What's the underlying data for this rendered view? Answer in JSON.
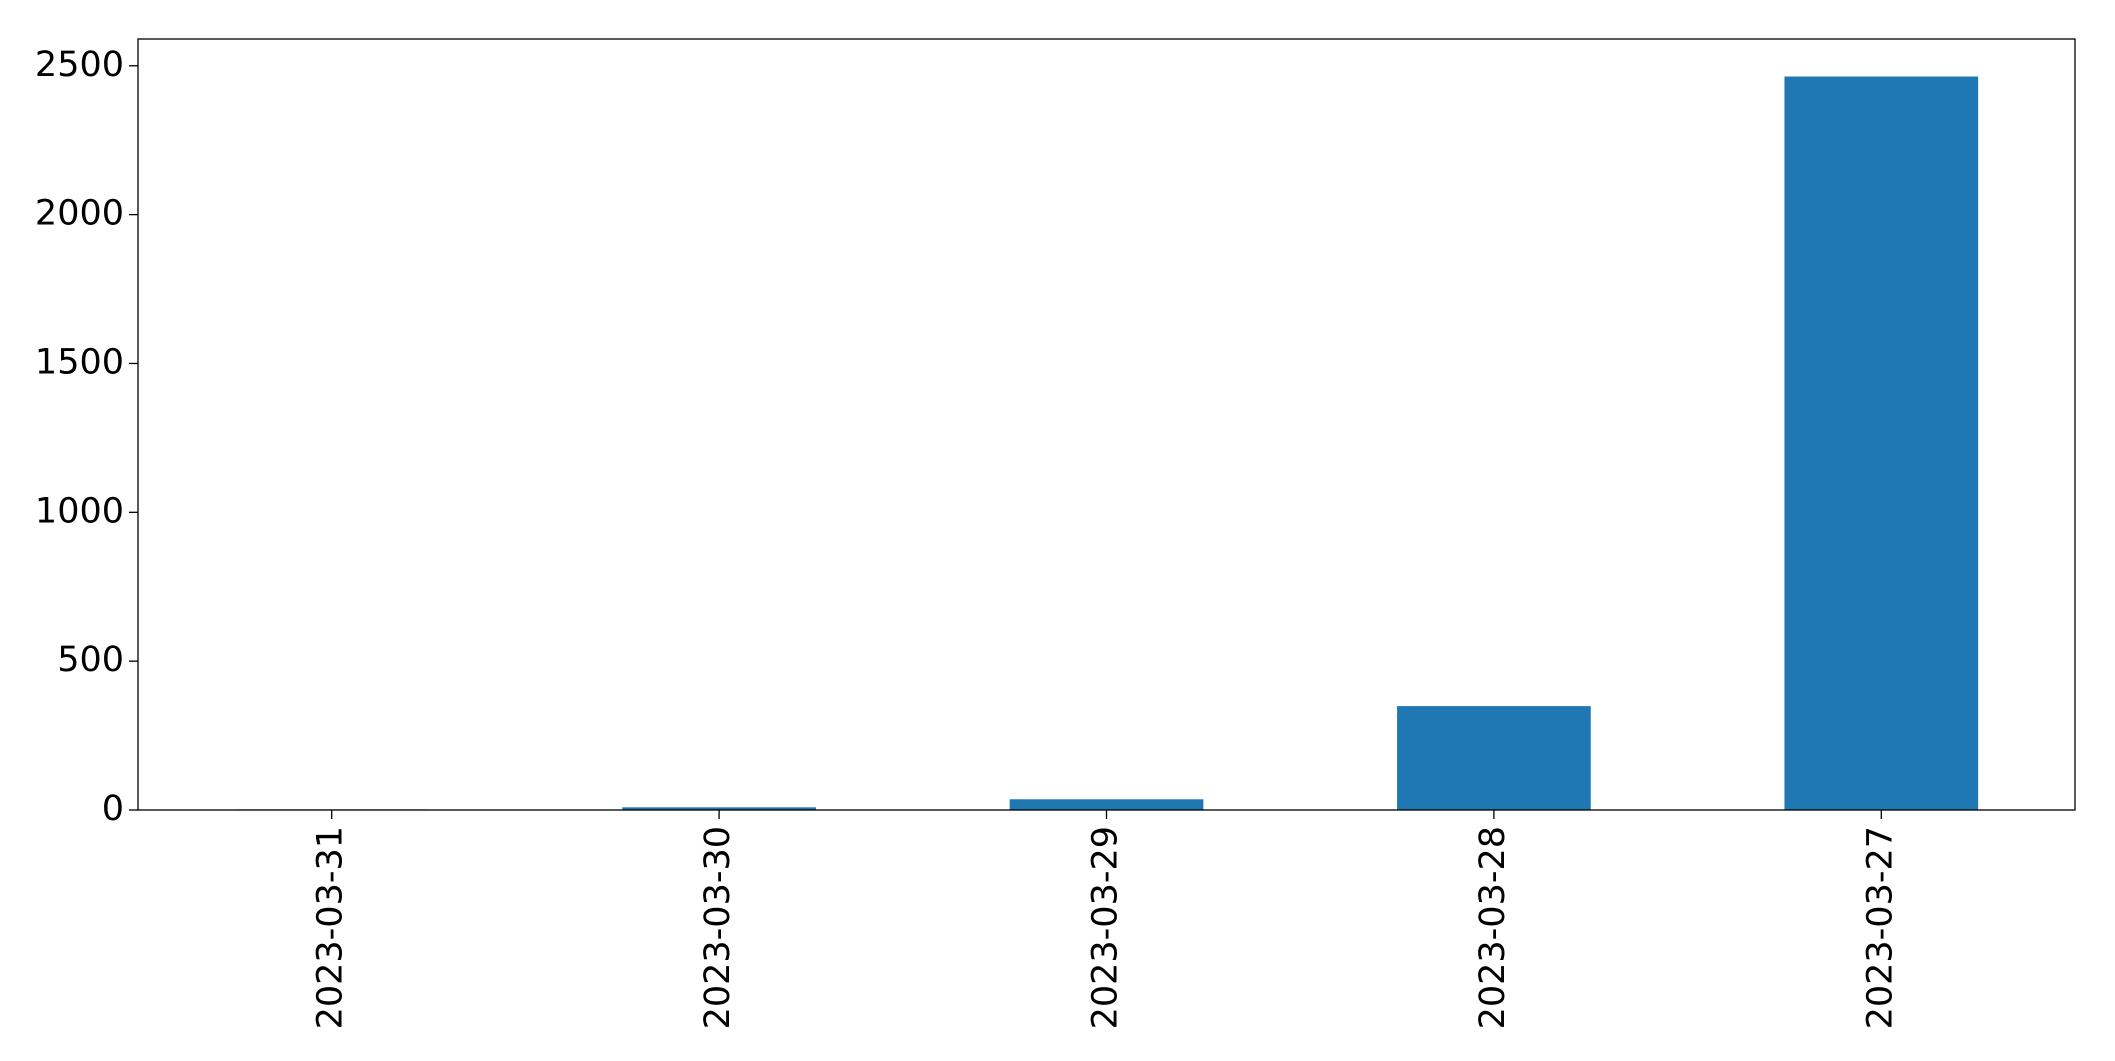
{
  "chart_data": {
    "type": "bar",
    "categories": [
      "2023-03-31",
      "2023-03-30",
      "2023-03-29",
      "2023-03-28",
      "2023-03-27"
    ],
    "values": [
      2,
      9,
      36,
      349,
      2464
    ],
    "color": "#1f77b4",
    "ylim": [
      0,
      2590
    ],
    "yticks": [
      0,
      500,
      1000,
      1500,
      2000,
      2500
    ],
    "grid": false
  }
}
